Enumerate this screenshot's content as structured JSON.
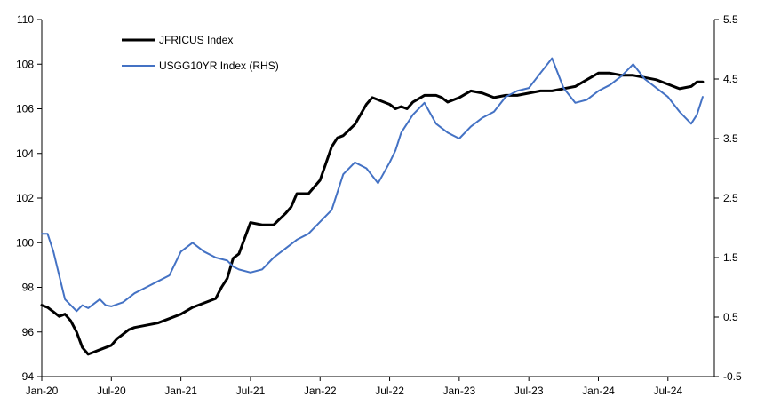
{
  "chart_data": {
    "type": "line",
    "title": "",
    "xlabel": "",
    "ylabel": "",
    "y2label": "",
    "x_categories": [
      "Jan-20",
      "Jul-20",
      "Jan-21",
      "Jul-21",
      "Jan-22",
      "Jul-22",
      "Jan-23",
      "Jul-23",
      "Jan-24",
      "Jul-24"
    ],
    "ylim": [
      94,
      110
    ],
    "y_ticks": [
      "94",
      "96",
      "98",
      "100",
      "102",
      "104",
      "106",
      "108",
      "110"
    ],
    "y2lim": [
      -0.5,
      5.5
    ],
    "y2_ticks": [
      "-0.5",
      "0.5",
      "1.5",
      "2.5",
      "3.5",
      "4.5",
      "5.5"
    ],
    "grid": false,
    "legend_position": "top-left",
    "series": [
      {
        "name": "JFRICUS Index",
        "axis": "left",
        "color": "#000000",
        "x": [
          0,
          0.5,
          1,
          1.5,
          2,
          2.5,
          3,
          3.5,
          4,
          4.5,
          5,
          5.5,
          6,
          6.5,
          7,
          7.5,
          8,
          9,
          10,
          11,
          12,
          13,
          14,
          15,
          15.5,
          16,
          16.5,
          17,
          18,
          19,
          20,
          21,
          21.5,
          22,
          23,
          24,
          25,
          25.5,
          26,
          27,
          28,
          28.5,
          29,
          30,
          30.5,
          31,
          31.5,
          32,
          33,
          34,
          34.5,
          35,
          36,
          37,
          38,
          39,
          40,
          41,
          42,
          43,
          44,
          45,
          46,
          47,
          48,
          49,
          50,
          51,
          52,
          53,
          54,
          55,
          56,
          56.5,
          57
        ],
        "values": [
          97.2,
          97.1,
          96.9,
          96.7,
          96.8,
          96.5,
          96.0,
          95.3,
          95.0,
          95.1,
          95.2,
          95.3,
          95.4,
          95.7,
          95.9,
          96.1,
          96.2,
          96.3,
          96.4,
          96.6,
          96.8,
          97.1,
          97.3,
          97.5,
          98.0,
          98.4,
          99.3,
          99.5,
          100.9,
          100.8,
          100.8,
          101.3,
          101.6,
          102.2,
          102.2,
          102.8,
          104.3,
          104.7,
          104.8,
          105.3,
          106.2,
          106.5,
          106.4,
          106.2,
          106.0,
          106.1,
          106.0,
          106.3,
          106.6,
          106.6,
          106.5,
          106.3,
          106.5,
          106.8,
          106.7,
          106.5,
          106.6,
          106.6,
          106.7,
          106.8,
          106.8,
          106.9,
          107.0,
          107.3,
          107.6,
          107.6,
          107.5,
          107.5,
          107.4,
          107.3,
          107.1,
          106.9,
          107.0,
          107.2,
          107.2
        ]
      },
      {
        "name": "USGG10YR Index (RHS)",
        "axis": "right",
        "color": "#4472C4",
        "x": [
          0,
          0.5,
          1,
          1.5,
          2,
          2.5,
          3,
          3.5,
          4,
          5,
          5.5,
          6,
          7,
          8,
          9,
          10,
          11,
          12,
          13,
          14,
          15,
          16,
          16.5,
          17,
          18,
          19,
          20,
          21,
          22,
          23,
          24,
          25,
          25.5,
          26,
          27,
          28,
          29,
          30,
          30.5,
          31,
          32,
          33,
          34,
          35,
          36,
          37,
          38,
          39,
          40,
          41,
          42,
          43,
          44,
          45,
          46,
          47,
          48,
          49,
          50,
          51,
          52,
          53,
          54,
          55,
          56,
          56.5,
          57
        ],
        "values": [
          1.9,
          1.9,
          1.6,
          1.2,
          0.8,
          0.7,
          0.6,
          0.7,
          0.65,
          0.8,
          0.7,
          0.68,
          0.75,
          0.9,
          1.0,
          1.1,
          1.2,
          1.6,
          1.75,
          1.6,
          1.5,
          1.45,
          1.35,
          1.3,
          1.25,
          1.3,
          1.5,
          1.65,
          1.8,
          1.9,
          2.1,
          2.3,
          2.6,
          2.9,
          3.1,
          3.0,
          2.75,
          3.1,
          3.3,
          3.6,
          3.9,
          4.1,
          3.75,
          3.6,
          3.5,
          3.7,
          3.85,
          3.95,
          4.2,
          4.3,
          4.35,
          4.6,
          4.85,
          4.35,
          4.1,
          4.15,
          4.3,
          4.4,
          4.55,
          4.75,
          4.5,
          4.35,
          4.2,
          3.95,
          3.75,
          3.9,
          4.2
        ]
      }
    ]
  }
}
